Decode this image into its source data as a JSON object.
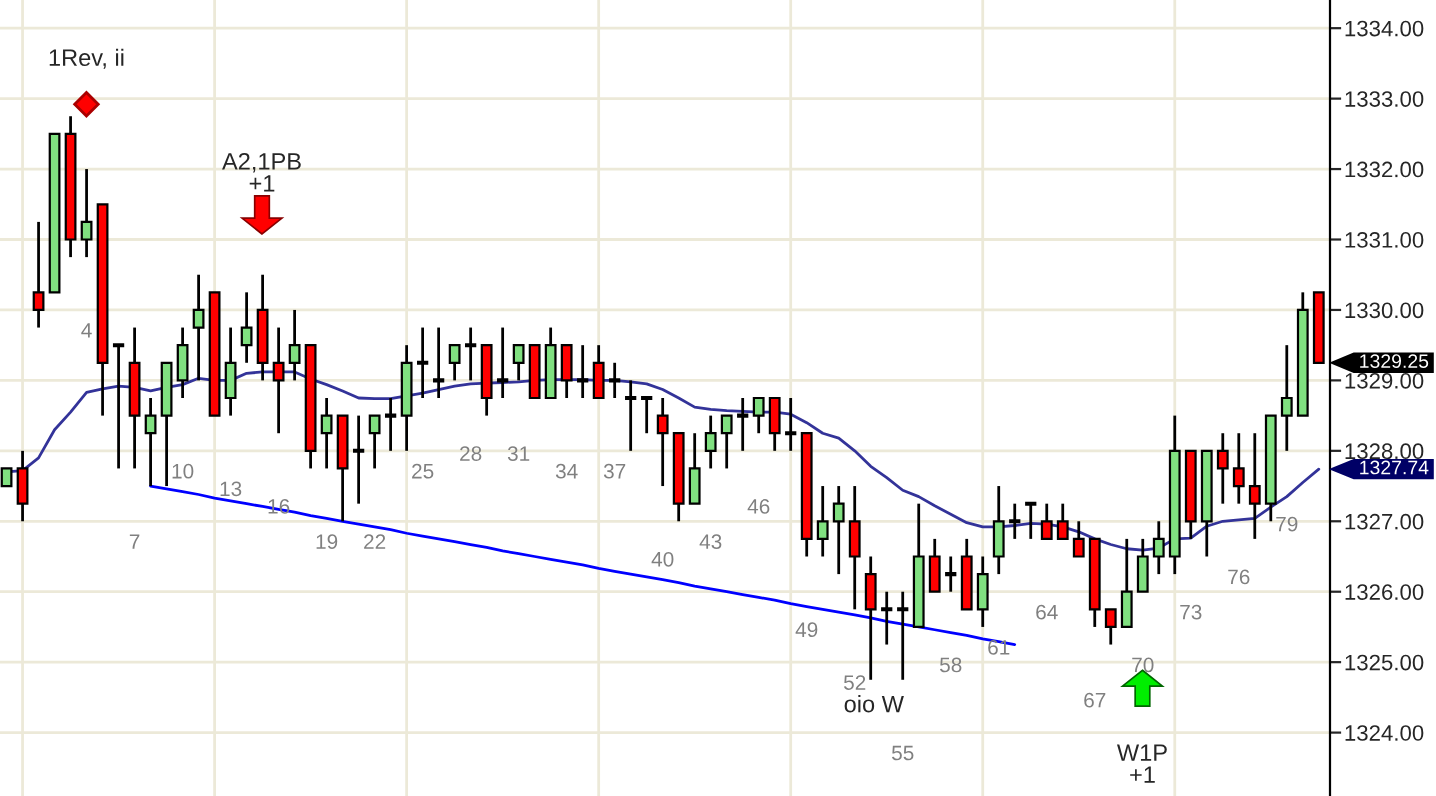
{
  "chart_data": {
    "type": "candlestick",
    "categories": [
      null,
      null,
      null,
      null,
      null,
      "4",
      null,
      null,
      "7",
      null,
      null,
      "10",
      null,
      null,
      "13",
      null,
      null,
      "16",
      null,
      null,
      "19",
      null,
      null,
      "22",
      null,
      null,
      "25",
      null,
      null,
      "28",
      null,
      null,
      "31",
      null,
      null,
      "34",
      null,
      null,
      "37",
      null,
      null,
      "40",
      null,
      null,
      "43",
      null,
      null,
      "46",
      null,
      null,
      "49",
      null,
      null,
      "52",
      null,
      null,
      "55",
      null,
      null,
      "58",
      null,
      null,
      "61",
      null,
      null,
      "64",
      null,
      null,
      "67",
      null,
      null,
      "70",
      null,
      null,
      "73",
      null,
      null,
      "76",
      null,
      null,
      "79",
      null,
      null
    ],
    "ohlc": [
      [
        1327.5,
        1327.75,
        1327.5,
        1327.75
      ],
      [
        1327.75,
        1328.0,
        1327.0,
        1327.25
      ],
      [
        1330.25,
        1331.25,
        1329.75,
        1330.0
      ],
      [
        1330.25,
        1332.5,
        1330.25,
        1332.5
      ],
      [
        1332.5,
        1332.75,
        1330.75,
        1331.0
      ],
      [
        1331.0,
        1332.0,
        1330.75,
        1331.25
      ],
      [
        1331.5,
        1331.5,
        1328.5,
        1329.25
      ],
      [
        1329.5,
        1329.5,
        1327.75,
        1329.5
      ],
      [
        1329.25,
        1329.75,
        1327.75,
        1328.5
      ],
      [
        1328.25,
        1328.75,
        1327.5,
        1328.5
      ],
      [
        1328.5,
        1329.25,
        1327.5,
        1329.25
      ],
      [
        1329.0,
        1329.75,
        1328.75,
        1329.5
      ],
      [
        1329.75,
        1330.5,
        1329.0,
        1330.0
      ],
      [
        1330.25,
        1330.25,
        1328.5,
        1328.5
      ],
      [
        1328.75,
        1329.75,
        1328.5,
        1329.25
      ],
      [
        1329.5,
        1330.25,
        1329.25,
        1329.75
      ],
      [
        1330.0,
        1330.5,
        1329.0,
        1329.25
      ],
      [
        1329.25,
        1329.75,
        1328.25,
        1329.0
      ],
      [
        1329.25,
        1330.0,
        1329.0,
        1329.5
      ],
      [
        1329.5,
        1329.5,
        1327.75,
        1328.0
      ],
      [
        1328.25,
        1328.75,
        1327.75,
        1328.5
      ],
      [
        1328.5,
        1328.5,
        1327.0,
        1327.75
      ],
      [
        1328.0,
        1328.5,
        1327.25,
        1328.0
      ],
      [
        1328.25,
        1328.5,
        1327.75,
        1328.5
      ],
      [
        1328.5,
        1328.75,
        1328.0,
        1328.5
      ],
      [
        1328.5,
        1329.5,
        1328.0,
        1329.25
      ],
      [
        1329.25,
        1329.75,
        1328.75,
        1329.25
      ],
      [
        1329.0,
        1329.75,
        1328.75,
        1329.0
      ],
      [
        1329.25,
        1329.5,
        1329.0,
        1329.5
      ],
      [
        1329.5,
        1329.75,
        1329.0,
        1329.5
      ],
      [
        1329.5,
        1329.5,
        1328.5,
        1328.75
      ],
      [
        1329.0,
        1329.75,
        1328.75,
        1329.0
      ],
      [
        1329.25,
        1329.5,
        1329.0,
        1329.5
      ],
      [
        1329.5,
        1329.5,
        1328.75,
        1328.75
      ],
      [
        1328.75,
        1329.75,
        1328.75,
        1329.5
      ],
      [
        1329.5,
        1329.5,
        1328.75,
        1329.0
      ],
      [
        1329.0,
        1329.5,
        1328.75,
        1329.0
      ],
      [
        1329.25,
        1329.5,
        1328.75,
        1328.75
      ],
      [
        1329.0,
        1329.25,
        1328.75,
        1329.0
      ],
      [
        1328.75,
        1329.0,
        1328.0,
        1328.75
      ],
      [
        1328.75,
        1328.75,
        1328.25,
        1328.75
      ],
      [
        1328.5,
        1328.75,
        1327.5,
        1328.25
      ],
      [
        1328.25,
        1328.25,
        1327.0,
        1327.25
      ],
      [
        1327.25,
        1328.25,
        1327.25,
        1327.75
      ],
      [
        1328.0,
        1328.5,
        1327.75,
        1328.25
      ],
      [
        1328.25,
        1328.5,
        1327.75,
        1328.5
      ],
      [
        1328.5,
        1328.75,
        1328.0,
        1328.5
      ],
      [
        1328.5,
        1328.75,
        1328.25,
        1328.75
      ],
      [
        1328.75,
        1328.75,
        1328.0,
        1328.25
      ],
      [
        1328.25,
        1328.75,
        1328.0,
        1328.25
      ],
      [
        1328.25,
        1328.25,
        1326.5,
        1326.75
      ],
      [
        1326.75,
        1327.5,
        1326.5,
        1327.0
      ],
      [
        1327.0,
        1327.5,
        1326.25,
        1327.25
      ],
      [
        1327.0,
        1327.5,
        1325.75,
        1326.5
      ],
      [
        1326.25,
        1326.5,
        1324.75,
        1325.75
      ],
      [
        1325.75,
        1326.0,
        1325.25,
        1325.75
      ],
      [
        1325.75,
        1326.0,
        1324.75,
        1325.75
      ],
      [
        1325.5,
        1327.25,
        1325.5,
        1326.5
      ],
      [
        1326.5,
        1326.75,
        1326.0,
        1326.0
      ],
      [
        1326.25,
        1326.5,
        1326.0,
        1326.25
      ],
      [
        1326.5,
        1326.75,
        1325.75,
        1325.75
      ],
      [
        1325.75,
        1326.5,
        1325.5,
        1326.25
      ],
      [
        1326.5,
        1327.5,
        1326.25,
        1327.0
      ],
      [
        1327.0,
        1327.25,
        1326.75,
        1327.0
      ],
      [
        1327.25,
        1327.25,
        1326.75,
        1327.25
      ],
      [
        1327.0,
        1327.25,
        1326.75,
        1326.75
      ],
      [
        1327.0,
        1327.25,
        1326.75,
        1326.75
      ],
      [
        1326.75,
        1327.0,
        1326.5,
        1326.5
      ],
      [
        1326.75,
        1326.75,
        1325.5,
        1325.75
      ],
      [
        1325.75,
        1325.75,
        1325.25,
        1325.5
      ],
      [
        1325.5,
        1326.75,
        1325.5,
        1326.0
      ],
      [
        1326.0,
        1326.75,
        1326.0,
        1326.5
      ],
      [
        1326.5,
        1327.0,
        1326.25,
        1326.75
      ],
      [
        1326.5,
        1328.5,
        1326.25,
        1328.0
      ],
      [
        1328.0,
        1328.0,
        1326.75,
        1327.0
      ],
      [
        1327.0,
        1328.0,
        1326.5,
        1328.0
      ],
      [
        1328.0,
        1328.25,
        1327.25,
        1327.75
      ],
      [
        1327.75,
        1328.25,
        1327.25,
        1327.5
      ],
      [
        1327.5,
        1328.25,
        1326.75,
        1327.25
      ],
      [
        1327.25,
        1328.5,
        1327.0,
        1328.5
      ],
      [
        1328.5,
        1329.5,
        1328.0,
        1328.75
      ],
      [
        1328.5,
        1330.25,
        1328.5,
        1330.0
      ],
      [
        1330.25,
        1330.25,
        1329.25,
        1329.25
      ]
    ],
    "colors": [
      "#80e080",
      "#ff0000",
      "#ff0000",
      "#80e080",
      "#ff0000",
      "#80e080",
      "#ff0000",
      "#000000",
      "#ff0000",
      "#80e080",
      "#80e080",
      "#80e080",
      "#80e080",
      "#ff0000",
      "#80e080",
      "#80e080",
      "#ff0000",
      "#ff0000",
      "#80e080",
      "#ff0000",
      "#80e080",
      "#ff0000",
      "#000000",
      "#80e080",
      "#000000",
      "#80e080",
      "#000000",
      "#000000",
      "#80e080",
      "#000000",
      "#ff0000",
      "#000000",
      "#80e080",
      "#ff0000",
      "#80e080",
      "#ff0000",
      "#000000",
      "#ff0000",
      "#000000",
      "#000000",
      "#000000",
      "#ff0000",
      "#ff0000",
      "#80e080",
      "#80e080",
      "#80e080",
      "#000000",
      "#80e080",
      "#ff0000",
      "#000000",
      "#ff0000",
      "#80e080",
      "#80e080",
      "#ff0000",
      "#ff0000",
      "#000000",
      "#000000",
      "#80e080",
      "#ff0000",
      "#000000",
      "#ff0000",
      "#80e080",
      "#80e080",
      "#000000",
      "#000000",
      "#ff0000",
      "#ff0000",
      "#ff0000",
      "#ff0000",
      "#ff0000",
      "#80e080",
      "#80e080",
      "#80e080",
      "#80e080",
      "#ff0000",
      "#80e080",
      "#ff0000",
      "#ff0000",
      "#ff0000",
      "#80e080",
      "#80e080",
      "#80e080",
      "#ff0000"
    ],
    "series": [
      {
        "type": "line",
        "color": "#333399",
        "values": [
          1327.7,
          1327.72,
          1327.9,
          1328.3,
          1328.55,
          1328.83,
          1328.88,
          1328.92,
          1328.9,
          1328.85,
          1328.9,
          1328.94,
          1329.03,
          1329.0,
          1329.0,
          1329.1,
          1329.12,
          1329.12,
          1329.12,
          1329.02,
          1328.94,
          1328.85,
          1328.75,
          1328.74,
          1328.74,
          1328.78,
          1328.82,
          1328.87,
          1328.92,
          1328.95,
          1328.96,
          1328.97,
          1328.98,
          1329.0,
          1329.01,
          1329.01,
          1329.01,
          1329.0,
          1329.0,
          1328.98,
          1328.95,
          1328.87,
          1328.75,
          1328.62,
          1328.59,
          1328.57,
          1328.56,
          1328.55,
          1328.55,
          1328.52,
          1328.4,
          1328.25,
          1328.18,
          1328.0,
          1327.78,
          1327.62,
          1327.44,
          1327.35,
          1327.22,
          1327.1,
          1326.98,
          1326.92,
          1326.92,
          1326.94,
          1326.97,
          1326.96,
          1326.92,
          1326.85,
          1326.75,
          1326.67,
          1326.61,
          1326.59,
          1326.62,
          1326.75,
          1326.76,
          1326.93,
          1327.0,
          1327.02,
          1327.04,
          1327.2,
          1327.35,
          1327.55,
          1327.74
        ]
      },
      {
        "type": "line",
        "color": "#0000ff",
        "values": [
          null,
          null,
          null,
          null,
          null,
          null,
          null,
          null,
          null,
          1327.5,
          1327.46,
          1327.42,
          1327.38,
          1327.33,
          1327.29,
          1327.25,
          1327.21,
          1327.17,
          1327.13,
          1327.08,
          1327.04,
          1327.0,
          1326.96,
          1326.92,
          1326.88,
          1326.83,
          1326.79,
          1326.75,
          1326.71,
          1326.67,
          1326.63,
          1326.58,
          1326.54,
          1326.5,
          1326.46,
          1326.42,
          1326.38,
          1326.33,
          1326.29,
          1326.25,
          1326.21,
          1326.17,
          1326.13,
          1326.08,
          1326.04,
          1326.0,
          1325.96,
          1325.92,
          1325.88,
          1325.83,
          1325.79,
          1325.75,
          1325.71,
          1325.67,
          1325.63,
          1325.58,
          1325.54,
          1325.5,
          1325.46,
          1325.42,
          1325.38,
          1325.33,
          1325.29,
          1325.25,
          null,
          null,
          null,
          null,
          null,
          null,
          null,
          null,
          null,
          null,
          null,
          null,
          null,
          null,
          null,
          null,
          null,
          null,
          null
        ]
      }
    ],
    "ylim": [
      1323.1,
      1334.4
    ],
    "yticks": [
      {
        "value": 1324,
        "label": "1324.00"
      },
      {
        "value": 1325,
        "label": "1325.00"
      },
      {
        "value": 1326,
        "label": "1326.00"
      },
      {
        "value": 1327,
        "label": "1327.00"
      },
      {
        "value": 1328,
        "label": "1328.00"
      },
      {
        "value": 1329,
        "label": "1329.00"
      },
      {
        "value": 1330,
        "label": "1330.00"
      },
      {
        "value": 1331,
        "label": "1331.00"
      },
      {
        "value": 1332,
        "label": "1332.00"
      },
      {
        "value": 1333,
        "label": "1333.00"
      },
      {
        "value": 1334,
        "label": "1334.00"
      }
    ],
    "grid": true,
    "annotations": [
      "1Rev, ii",
      "A2,1PB\n+1",
      "oio W",
      "W1P\n+1",
      "1329.25",
      "1327.74"
    ]
  }
}
